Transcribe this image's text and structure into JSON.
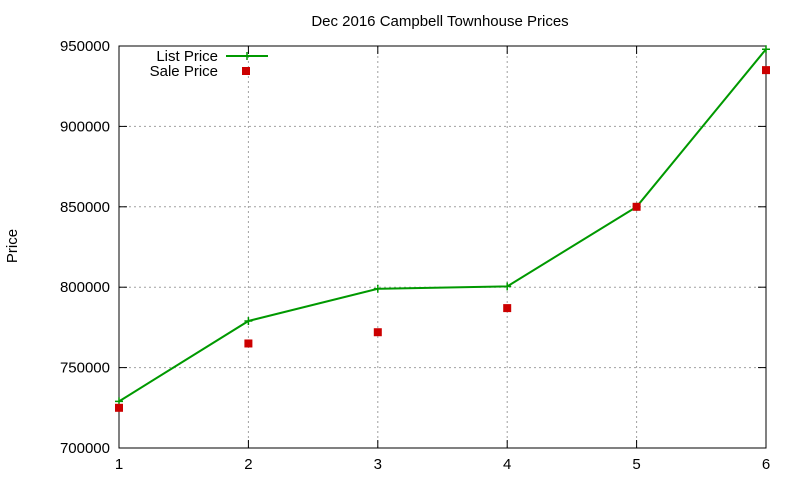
{
  "chart_data": {
    "type": "line",
    "title": "Dec 2016 Campbell Townhouse Prices",
    "xlabel": "",
    "ylabel": "Price",
    "xlim": [
      1,
      6
    ],
    "ylim": [
      700000,
      950000
    ],
    "xticks": [
      1,
      2,
      3,
      4,
      5,
      6
    ],
    "yticks": [
      700000,
      750000,
      800000,
      850000,
      900000,
      950000
    ],
    "grid": true,
    "legend_position": "top-left",
    "series": [
      {
        "name": "List Price",
        "style": "line-with-plus-markers",
        "color": "#009900",
        "x": [
          1,
          2,
          3,
          4,
          5,
          6
        ],
        "y": [
          729000,
          779000,
          799000,
          800500,
          850000,
          948000
        ]
      },
      {
        "name": "Sale Price",
        "style": "square-points",
        "color": "#cc0000",
        "x": [
          1,
          2,
          3,
          4,
          5,
          6
        ],
        "y": [
          725000,
          765000,
          772000,
          787000,
          850000,
          935000
        ]
      }
    ]
  }
}
